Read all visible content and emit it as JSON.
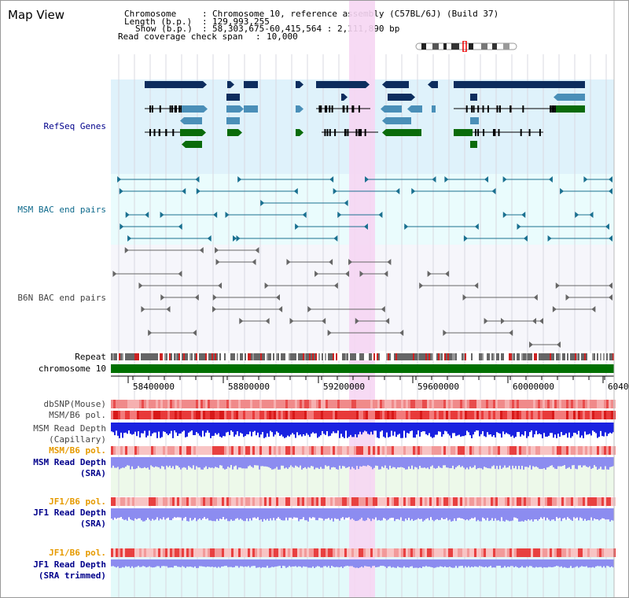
{
  "page_title": "Map View",
  "header": {
    "chromosome_label": "Chromosome",
    "chromosome_value": "Chromosome 10, reference assembly (C57BL/6J) (Build 37)",
    "length_label": "Length (b.p.)",
    "length_value": "129,993,255",
    "show_label": "Show (b.p.)",
    "show_value": "58,303,675-60,415,564 : 2,111,890 bp",
    "coverage_label": "Read coverage check span",
    "coverage_value": "10,000",
    "sep": ":"
  },
  "tracks": {
    "refseq": "RefSeq Genes",
    "msm_bac": "MSM BAC end pairs",
    "b6n_bac": "B6N BAC end pairs",
    "repeat": "Repeat",
    "chromosome": "chromosome 10",
    "dbsnp": "dbSNP(Mouse)",
    "msm_pol_1": "MSM/B6 pol.",
    "msm_depth_cap_1": "MSM Read Depth",
    "msm_depth_cap_2": "(Capillary)",
    "msm_pol_2": "MSM/B6 pol.",
    "msm_depth_sra_1": "MSM Read Depth",
    "msm_depth_sra_2": "(SRA)",
    "jf1_pol_1": "JF1/B6 pol.",
    "jf1_depth_sra_1": "JF1 Read Depth",
    "jf1_depth_sra_2": "(SRA)",
    "jf1_pol_2": "JF1/B6 pol.",
    "jf1_depth_trim_1": "JF1 Read Depth",
    "jf1_depth_trim_2": "(SRA trimmed)"
  },
  "axis": {
    "ticks": [
      "58400000",
      "58800000",
      "59200000",
      "59600000",
      "60000000",
      "6040"
    ]
  },
  "colors": {
    "refseq_dark": "#0d2d5e",
    "refseq_mid": "#4a8fb8",
    "refseq_green": "#0a6b0a",
    "msm_teal": "#1a7090",
    "b6n_gray": "#666666",
    "highlight": "#f6d6f3",
    "pol_red": "#e83a3a",
    "depth_blue": "#1a22e0",
    "depth_light": "#8c8cf0",
    "label_navy": "#00008b",
    "label_orange": "#e69a00",
    "label_teal": "#0f6a8c",
    "label_gray": "#444444",
    "chromosome_green": "#007000"
  }
}
